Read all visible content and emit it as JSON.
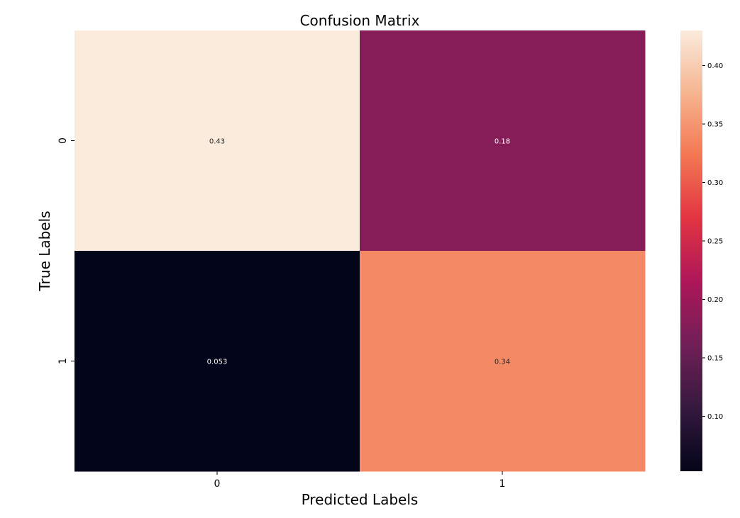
{
  "chart_data": {
    "type": "heatmap",
    "title": "Confusion Matrix",
    "xlabel": "Predicted Labels",
    "ylabel": "True Labels",
    "x_categories": [
      "0",
      "1"
    ],
    "y_categories": [
      "0",
      "1"
    ],
    "values": [
      [
        0.43,
        0.18
      ],
      [
        0.053,
        0.34
      ]
    ],
    "value_labels": [
      [
        "0.43",
        "0.18"
      ],
      [
        "0.053",
        "0.34"
      ]
    ],
    "colorbar": {
      "min": 0.053,
      "max": 0.43,
      "ticks": [
        0.1,
        0.15,
        0.2,
        0.25,
        0.3,
        0.35,
        0.4
      ],
      "tick_labels": [
        "0.10",
        "0.15",
        "0.20",
        "0.25",
        "0.30",
        "0.35",
        "0.40"
      ]
    },
    "colormap": "rocket",
    "colormap_stops": [
      "#03051a",
      "#35193e",
      "#701f57",
      "#ad1759",
      "#e13342",
      "#f37651",
      "#f6b48f",
      "#faebdd"
    ]
  }
}
